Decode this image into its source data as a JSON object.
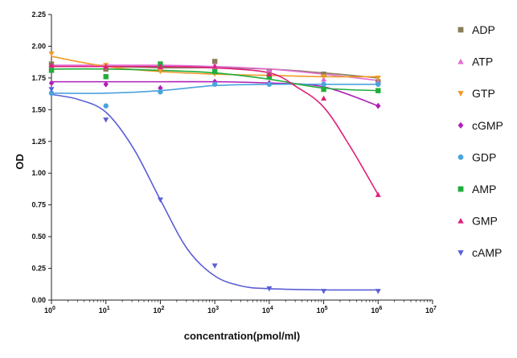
{
  "chart_data": {
    "type": "scatter",
    "title": "",
    "xlabel": "concentration(pmol/ml)",
    "ylabel": "OD",
    "x_scale": "log",
    "xlim": [
      1,
      10000000
    ],
    "ylim": [
      0,
      2.25
    ],
    "x_ticks": [
      1,
      10,
      100,
      1000,
      10000,
      100000,
      1000000,
      10000000
    ],
    "x_tick_bases": [
      "10",
      "10",
      "10",
      "10",
      "10",
      "10",
      "10",
      "10"
    ],
    "x_tick_exponents": [
      "0",
      "1",
      "2",
      "3",
      "4",
      "5",
      "6",
      "7"
    ],
    "y_ticks": [
      "0.00",
      "0.25",
      "0.50",
      "0.75",
      "1.00",
      "1.25",
      "1.50",
      "1.75",
      "2.00",
      "2.25"
    ],
    "grid": false,
    "legend_position": "right",
    "series": [
      {
        "name": "ADP",
        "color": "#8b7d5a",
        "marker": "square",
        "x": [
          1,
          10,
          100,
          1000,
          10000,
          100000,
          1000000
        ],
        "y": [
          1.86,
          1.82,
          1.82,
          1.88,
          1.8,
          1.78,
          1.72
        ],
        "fit": [
          [
            1,
            1.84
          ],
          [
            10,
            1.84
          ],
          [
            100,
            1.83
          ],
          [
            1000,
            1.83
          ],
          [
            10000,
            1.82
          ],
          [
            100000,
            1.79
          ],
          [
            1000000,
            1.75
          ]
        ]
      },
      {
        "name": "ATP",
        "color": "#e26bd8",
        "marker": "triangle-up",
        "x": [
          1,
          10,
          100,
          1000,
          10000,
          100000,
          1000000
        ],
        "y": [
          1.83,
          1.84,
          1.84,
          1.85,
          1.81,
          1.74,
          1.72
        ],
        "fit": [
          [
            1,
            1.85
          ],
          [
            10,
            1.85
          ],
          [
            100,
            1.85
          ],
          [
            1000,
            1.84
          ],
          [
            10000,
            1.82
          ],
          [
            100000,
            1.78
          ],
          [
            1000000,
            1.73
          ]
        ]
      },
      {
        "name": "GTP",
        "color": "#f09a2a",
        "marker": "triangle-down",
        "x": [
          1,
          10,
          100,
          1000,
          10000,
          100000,
          1000000
        ],
        "y": [
          1.94,
          1.85,
          1.8,
          1.78,
          1.76,
          1.76,
          1.75
        ],
        "fit": [
          [
            1,
            1.92
          ],
          [
            10,
            1.84
          ],
          [
            100,
            1.8
          ],
          [
            1000,
            1.78
          ],
          [
            10000,
            1.77
          ],
          [
            100000,
            1.76
          ],
          [
            1000000,
            1.76
          ]
        ]
      },
      {
        "name": "cGMP",
        "color": "#b01fb8",
        "marker": "diamond",
        "x": [
          1,
          10,
          100,
          1000,
          10000,
          100000,
          1000000
        ],
        "y": [
          1.71,
          1.7,
          1.67,
          1.72,
          1.71,
          1.7,
          1.53
        ],
        "fit": [
          [
            1,
            1.72
          ],
          [
            10,
            1.72
          ],
          [
            100,
            1.72
          ],
          [
            1000,
            1.72
          ],
          [
            10000,
            1.71
          ],
          [
            100000,
            1.68
          ],
          [
            1000000,
            1.53
          ]
        ]
      },
      {
        "name": "GDP",
        "color": "#4aa3df",
        "marker": "circle",
        "x": [
          1,
          10,
          100,
          1000,
          10000,
          100000,
          1000000
        ],
        "y": [
          1.63,
          1.53,
          1.64,
          1.7,
          1.7,
          1.7,
          1.7
        ],
        "fit": [
          [
            1,
            1.63
          ],
          [
            10,
            1.63
          ],
          [
            100,
            1.65
          ],
          [
            1000,
            1.69
          ],
          [
            10000,
            1.7
          ],
          [
            100000,
            1.7
          ],
          [
            1000000,
            1.7
          ]
        ]
      },
      {
        "name": "AMP",
        "color": "#1fae3a",
        "marker": "square",
        "x": [
          1,
          10,
          100,
          1000,
          10000,
          100000,
          1000000
        ],
        "y": [
          1.81,
          1.76,
          1.86,
          1.8,
          1.76,
          1.66,
          1.65
        ],
        "fit": [
          [
            1,
            1.82
          ],
          [
            10,
            1.82
          ],
          [
            100,
            1.81
          ],
          [
            1000,
            1.79
          ],
          [
            10000,
            1.74
          ],
          [
            100000,
            1.67
          ],
          [
            1000000,
            1.65
          ]
        ]
      },
      {
        "name": "GMP",
        "color": "#e0207a",
        "marker": "triangle-up",
        "x": [
          1,
          10,
          100,
          1000,
          10000,
          100000,
          1000000
        ],
        "y": [
          1.85,
          1.84,
          1.84,
          1.84,
          1.78,
          1.59,
          0.83
        ],
        "fit": [
          [
            1,
            1.84
          ],
          [
            10,
            1.84
          ],
          [
            100,
            1.84
          ],
          [
            1000,
            1.83
          ],
          [
            10000,
            1.79
          ],
          [
            31623,
            1.68
          ],
          [
            100000,
            1.52
          ],
          [
            316228,
            1.2
          ],
          [
            1000000,
            0.83
          ]
        ]
      },
      {
        "name": "cAMP",
        "color": "#5a5fd6",
        "marker": "triangle-down",
        "x": [
          1,
          10,
          100,
          1000,
          10000,
          100000,
          1000000
        ],
        "y": [
          1.66,
          1.42,
          0.79,
          0.27,
          0.09,
          0.07,
          0.07
        ],
        "fit": [
          [
            1,
            1.62
          ],
          [
            3.16,
            1.58
          ],
          [
            10,
            1.48
          ],
          [
            31.6,
            1.2
          ],
          [
            100,
            0.79
          ],
          [
            316,
            0.4
          ],
          [
            1000,
            0.19
          ],
          [
            3162,
            0.11
          ],
          [
            10000,
            0.09
          ],
          [
            100000,
            0.08
          ],
          [
            1000000,
            0.08
          ]
        ]
      }
    ]
  }
}
